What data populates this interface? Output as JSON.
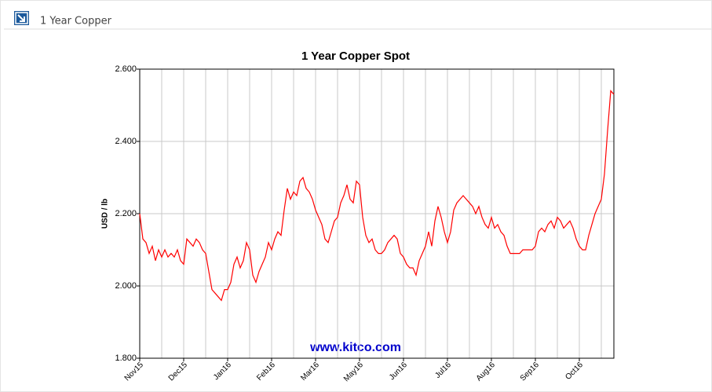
{
  "header": {
    "title": "1 Year Copper"
  },
  "chart_data": {
    "type": "line",
    "title": "1 Year Copper Spot",
    "y_label": "USD / lb",
    "annotation": "www.kitco.com",
    "categories": [
      "Nov15",
      null,
      null,
      null,
      null,
      null,
      null,
      null,
      null,
      null,
      null,
      null,
      null,
      null,
      "Dec15",
      null,
      null,
      null,
      null,
      null,
      null,
      null,
      null,
      null,
      null,
      null,
      null,
      null,
      "Jan16",
      null,
      null,
      null,
      null,
      null,
      null,
      null,
      null,
      null,
      null,
      null,
      null,
      null,
      "Feb16",
      null,
      null,
      null,
      null,
      null,
      null,
      null,
      null,
      null,
      null,
      null,
      null,
      null,
      "Mar16",
      null,
      null,
      null,
      null,
      null,
      null,
      null,
      null,
      null,
      null,
      null,
      null,
      null,
      "May16",
      null,
      null,
      null,
      null,
      null,
      null,
      null,
      null,
      null,
      null,
      null,
      null,
      null,
      "Jun16",
      null,
      null,
      null,
      null,
      null,
      null,
      null,
      null,
      null,
      null,
      null,
      null,
      null,
      "Jul16",
      null,
      null,
      null,
      null,
      null,
      null,
      null,
      null,
      null,
      null,
      null,
      null,
      null,
      "Aug16",
      null,
      null,
      null,
      null,
      null,
      null,
      null,
      null,
      null,
      null,
      null,
      null,
      null,
      "Sep16",
      null,
      null,
      null,
      null,
      null,
      null,
      null,
      null,
      null,
      null,
      null,
      null,
      null,
      "Oct16",
      null,
      null,
      null,
      null,
      null,
      null,
      null,
      null,
      null,
      null,
      null
    ],
    "series": [
      {
        "color": "#ff0000",
        "values": [
          2.2,
          2.13,
          2.12,
          2.09,
          2.11,
          2.07,
          2.1,
          2.08,
          2.1,
          2.08,
          2.09,
          2.08,
          2.1,
          2.07,
          2.06,
          2.13,
          2.12,
          2.11,
          2.13,
          2.12,
          2.1,
          2.09,
          2.04,
          1.99,
          1.98,
          1.97,
          1.96,
          1.99,
          1.99,
          2.01,
          2.06,
          2.08,
          2.05,
          2.07,
          2.12,
          2.1,
          2.03,
          2.01,
          2.04,
          2.06,
          2.08,
          2.12,
          2.1,
          2.13,
          2.15,
          2.14,
          2.21,
          2.27,
          2.24,
          2.26,
          2.25,
          2.29,
          2.3,
          2.27,
          2.26,
          2.24,
          2.21,
          2.19,
          2.17,
          2.13,
          2.12,
          2.15,
          2.18,
          2.19,
          2.23,
          2.25,
          2.28,
          2.24,
          2.23,
          2.29,
          2.28,
          2.19,
          2.14,
          2.12,
          2.13,
          2.1,
          2.09,
          2.09,
          2.1,
          2.12,
          2.13,
          2.14,
          2.13,
          2.09,
          2.08,
          2.06,
          2.05,
          2.05,
          2.03,
          2.07,
          2.09,
          2.11,
          2.15,
          2.11,
          2.18,
          2.22,
          2.19,
          2.15,
          2.12,
          2.15,
          2.21,
          2.23,
          2.24,
          2.25,
          2.24,
          2.23,
          2.22,
          2.2,
          2.22,
          2.19,
          2.17,
          2.16,
          2.19,
          2.16,
          2.17,
          2.15,
          2.14,
          2.11,
          2.09,
          2.09,
          2.09,
          2.09,
          2.1,
          2.1,
          2.1,
          2.1,
          2.11,
          2.15,
          2.16,
          2.15,
          2.17,
          2.18,
          2.16,
          2.19,
          2.18,
          2.16,
          2.17,
          2.18,
          2.16,
          2.13,
          2.11,
          2.1,
          2.1,
          2.14,
          2.17,
          2.2,
          2.22,
          2.24,
          2.31,
          2.43,
          2.54,
          2.53
        ]
      }
    ],
    "ylim": [
      1.8,
      2.6
    ],
    "yticks": [
      {
        "value": 1.8,
        "label": "1.800"
      },
      {
        "value": 2.0,
        "label": "2.000"
      },
      {
        "value": 2.2,
        "label": "2.200"
      },
      {
        "value": 2.4,
        "label": "2.400"
      },
      {
        "value": 2.6,
        "label": "2.600"
      }
    ],
    "grid": true
  }
}
